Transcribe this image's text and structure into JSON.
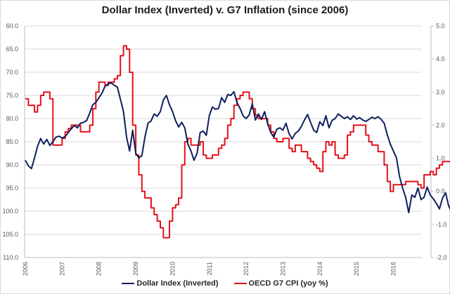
{
  "chart_data": {
    "type": "line",
    "title": "Dollar Index (Inverted) v. G7 Inflation (since 2006)",
    "xlabel": "",
    "ylabel_left": "",
    "ylabel_right": "",
    "x_tick_labels": [
      "2006",
      "2007",
      "2008",
      "2009",
      "2010",
      "2011",
      "2012",
      "2013",
      "2014",
      "2015",
      "2016"
    ],
    "x_range": [
      2006.0,
      2016.95
    ],
    "y_left": {
      "min": 60,
      "max": 110,
      "inverted": true,
      "ticks": [
        "60.0",
        "65.0",
        "70.0",
        "75.0",
        "80.0",
        "85.0",
        "90.0",
        "95.0",
        "100.0",
        "105.0",
        "110.0"
      ]
    },
    "y_right": {
      "min": -2,
      "max": 5,
      "ticks": [
        "5.0",
        "4.0",
        "3.0",
        "2.0",
        "1.0",
        "0.0",
        "-1.0",
        "-2.0"
      ]
    },
    "grid": true,
    "legend_position": "bottom",
    "series": [
      {
        "name": "Dollar Index (Inverted)",
        "axis": "left",
        "color": "#0d1f5c",
        "start": 2006.0,
        "step_months": 1,
        "values": [
          89.0,
          90.2,
          90.8,
          88.5,
          86.0,
          84.3,
          85.5,
          84.5,
          85.8,
          85.0,
          84.0,
          83.8,
          84.2,
          83.9,
          83.0,
          82.2,
          81.5,
          82.0,
          81.0,
          80.8,
          80.4,
          78.8,
          77.0,
          76.5,
          75.5,
          74.5,
          73.0,
          72.5,
          72.3,
          72.8,
          73.2,
          75.8,
          78.5,
          84.0,
          87.0,
          82.5,
          87.5,
          88.5,
          88.0,
          84.0,
          81.0,
          80.5,
          79.0,
          79.5,
          78.5,
          76.0,
          75.0,
          77.0,
          78.5,
          80.5,
          81.8,
          80.8,
          82.0,
          85.5,
          87.0,
          89.0,
          87.5,
          83.0,
          82.7,
          83.6,
          79.3,
          77.5,
          78.0,
          77.8,
          75.5,
          76.5,
          74.8,
          75.0,
          74.2,
          76.5,
          77.8,
          79.4,
          80.0,
          79.2,
          76.8,
          80.3,
          79.0,
          80.2,
          78.5,
          81.0,
          83.0,
          84.0,
          82.3,
          82.0,
          82.5,
          81.0,
          83.3,
          84.4,
          83.2,
          82.7,
          81.7,
          80.3,
          79.1,
          80.8,
          82.5,
          83.0,
          80.7,
          81.5,
          79.4,
          82.0,
          80.4,
          80.0,
          79.0,
          79.5,
          80.0,
          79.6,
          80.2,
          79.4,
          80.1,
          79.8,
          80.3,
          80.6,
          80.2,
          79.7,
          80.0,
          79.6,
          80.2,
          81.0,
          83.5,
          85.5,
          87.0,
          88.5,
          92.5,
          95.0,
          97.0,
          100.3,
          96.5,
          97.0,
          95.0,
          97.5,
          97.0,
          94.8,
          96.5,
          97.3,
          98.3,
          99.5,
          97.2,
          96.0,
          98.8,
          100.2,
          98.5,
          97.0,
          95.8,
          94.0,
          93.8,
          95.6,
          94.2,
          95.8,
          94.8,
          95.8,
          96.6,
          98.5,
          100.0
        ]
      },
      {
        "name": "OECD G7 CPI (yoy %)",
        "axis": "right",
        "color": "#e3121b",
        "start": 2006.0,
        "step_months": 1,
        "values": [
          2.8,
          2.6,
          2.6,
          2.4,
          2.6,
          2.9,
          3.0,
          3.0,
          2.8,
          1.4,
          1.4,
          1.4,
          1.6,
          1.8,
          1.9,
          2.0,
          2.0,
          2.0,
          1.8,
          1.8,
          1.8,
          2.0,
          2.5,
          3.0,
          3.3,
          3.3,
          3.2,
          3.3,
          3.3,
          3.4,
          3.5,
          4.1,
          4.4,
          4.3,
          3.6,
          2.0,
          1.1,
          0.5,
          0.0,
          -0.2,
          -0.2,
          -0.5,
          -0.7,
          -0.9,
          -1.1,
          -1.4,
          -1.4,
          -0.9,
          -0.5,
          -0.4,
          -0.2,
          0.8,
          1.5,
          1.6,
          1.4,
          1.4,
          1.4,
          1.5,
          1.1,
          1.0,
          1.0,
          1.1,
          1.1,
          1.3,
          1.4,
          1.6,
          2.0,
          2.2,
          2.6,
          2.8,
          2.9,
          3.0,
          3.0,
          2.8,
          2.5,
          2.3,
          2.2,
          2.2,
          2.2,
          2.0,
          1.8,
          1.6,
          1.5,
          1.5,
          1.6,
          1.6,
          1.3,
          1.2,
          1.4,
          1.4,
          1.2,
          1.2,
          1.0,
          0.9,
          0.8,
          0.7,
          0.6,
          1.2,
          1.5,
          1.4,
          1.5,
          1.1,
          1.0,
          1.0,
          1.1,
          1.7,
          1.8,
          2.0,
          2.0,
          2.0,
          2.0,
          1.7,
          1.5,
          1.4,
          1.4,
          1.2,
          1.2,
          0.8,
          0.3,
          0.0,
          0.2,
          0.2,
          0.2,
          0.2,
          0.3,
          0.3,
          0.3,
          0.3,
          0.2,
          0.1,
          0.5,
          0.5,
          0.6,
          0.5,
          0.7,
          0.8,
          0.9,
          0.9,
          0.9,
          0.7,
          0.7,
          0.7,
          0.6,
          0.7,
          0.6,
          0.7,
          0.7,
          0.7,
          0.9,
          1.0,
          1.0
        ]
      }
    ]
  },
  "legend": {
    "items": [
      {
        "label": "Dollar Index (Inverted)",
        "color": "#0d1f5c"
      },
      {
        "label": "OECD G7 CPI (yoy %)",
        "color": "#e3121b"
      }
    ]
  }
}
